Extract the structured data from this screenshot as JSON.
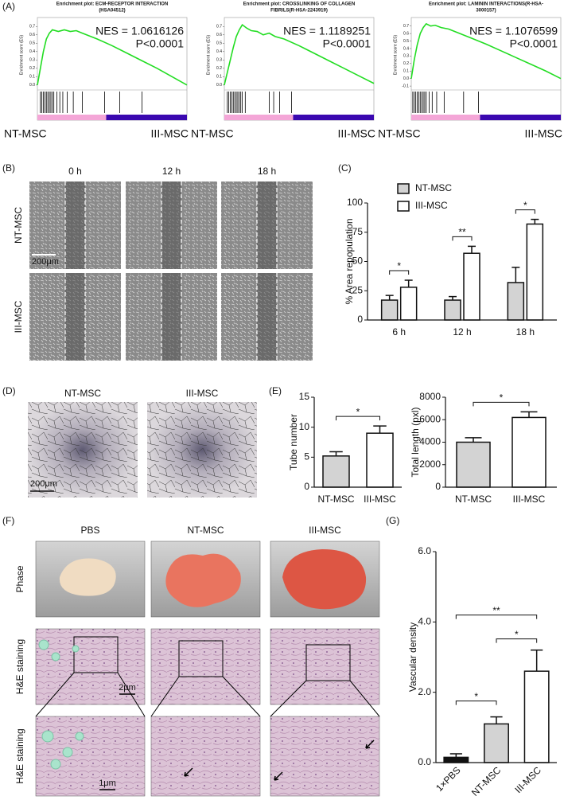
{
  "panel_labels": [
    "(A)",
    "(B)",
    "(C)",
    "(D)",
    "(E)",
    "(F)",
    "(G)"
  ],
  "chart_data": [
    {
      "type": "gsea",
      "title": [
        "Enrichment plot: ECM-RECEPTOR INTERACTION",
        "(HSA04512)"
      ],
      "ylabel": "Enrichment score (ES)",
      "nes": "NES = 1.0616126",
      "pvalue": "P<0.0001",
      "class_names": [
        "NT-MSC",
        "III-MSC"
      ],
      "color": "#22dd22",
      "class_colors": [
        "#f4a6d7",
        "#3a08b0"
      ],
      "x": [
        0,
        2,
        4,
        6,
        8,
        10,
        14,
        18,
        22,
        26,
        30,
        40,
        50,
        60,
        70,
        80,
        90,
        100
      ],
      "values": [
        0,
        0.2,
        0.4,
        0.55,
        0.62,
        0.66,
        0.64,
        0.66,
        0.64,
        0.65,
        0.62,
        0.55,
        0.47,
        0.38,
        0.29,
        0.2,
        0.1,
        0
      ],
      "hits": [
        2,
        3,
        4,
        5,
        6,
        7,
        8,
        9,
        10,
        11,
        13,
        15,
        17,
        20,
        24,
        30,
        45,
        55,
        70
      ],
      "class_split": 46,
      "xlim": [
        0,
        100
      ],
      "ylim": [
        -0.03,
        0.75
      ],
      "yticks": [
        {
          "value": 0,
          "label": "0.0"
        },
        0.1,
        0.2,
        0.3,
        0.4,
        0.5,
        0.6,
        0.7
      ]
    },
    {
      "type": "gsea",
      "title": [
        "Enrichment plot: CROSSLINKING OF COLLAGEN",
        "FIBRILS(R-HSA-2243919)"
      ],
      "ylabel": "Enrichment score (ES)",
      "nes": "NES = 1.1189251",
      "pvalue": "P<0.0001",
      "class_names": [
        "NT-MSC",
        "III-MSC"
      ],
      "color": "#22dd22",
      "class_colors": [
        "#f4a6d7",
        "#3a08b0"
      ],
      "x": [
        0,
        2,
        4,
        6,
        8,
        10,
        12,
        15,
        18,
        22,
        26,
        30,
        34,
        40,
        50,
        60,
        70,
        80,
        90,
        100
      ],
      "values": [
        0,
        0.15,
        0.3,
        0.45,
        0.58,
        0.66,
        0.72,
        0.68,
        0.65,
        0.64,
        0.6,
        0.62,
        0.58,
        0.55,
        0.47,
        0.38,
        0.29,
        0.2,
        0.11,
        0.02
      ],
      "hits": [
        2,
        3,
        4,
        5,
        6,
        7,
        8,
        9,
        10,
        11,
        12,
        14,
        30,
        33,
        37,
        45
      ],
      "class_split": 46,
      "xlim": [
        0,
        100
      ],
      "ylim": [
        -0.03,
        0.75
      ],
      "yticks": [
        {
          "value": 0,
          "label": "0.0"
        },
        0.1,
        0.2,
        0.3,
        0.4,
        0.5,
        0.6,
        0.7
      ]
    },
    {
      "type": "gsea",
      "title": [
        "Enrichment plot: LAMININ INTERACTIONS(R-HSA-",
        "3000157)"
      ],
      "ylabel": "Enrichment score (ES)",
      "nes": "NES = 1.1076599",
      "pvalue": "P<0.0001",
      "class_names": [
        "NT-MSC",
        "III-MSC"
      ],
      "color": "#22dd22",
      "class_colors": [
        "#f4a6d7",
        "#3a08b0"
      ],
      "x": [
        0,
        2,
        4,
        6,
        8,
        10,
        13,
        16,
        20,
        25,
        30,
        40,
        50,
        60,
        70,
        80,
        90,
        100
      ],
      "values": [
        0,
        0.25,
        0.45,
        0.6,
        0.68,
        0.73,
        0.7,
        0.71,
        0.68,
        0.66,
        0.62,
        0.54,
        0.46,
        0.37,
        0.28,
        0.19,
        0.1,
        0
      ],
      "hits": [
        1,
        2,
        3,
        4,
        5,
        6,
        7,
        8,
        9,
        10,
        12,
        14,
        17,
        22,
        35,
        45
      ],
      "class_split": 46,
      "xlim": [
        0,
        100
      ],
      "ylim": [
        -0.12,
        0.75
      ],
      "yticks": [
        -0.1,
        {
          "value": 0,
          "label": "0.0"
        },
        0.1,
        0.2,
        0.3,
        0.4,
        0.5,
        0.6,
        0.7
      ]
    },
    {
      "type": "bar",
      "ylabel": "% Area repopulation",
      "categories": [
        "6 h",
        "12 h",
        "18 h"
      ],
      "series": [
        {
          "name": "NT-MSC",
          "color": "#d3d3d3",
          "values": [
            17,
            17,
            32
          ],
          "errors": [
            4,
            3,
            13
          ]
        },
        {
          "name": "III-MSC",
          "color": "#ffffff",
          "values": [
            28,
            57,
            82
          ],
          "errors": [
            6,
            6,
            4
          ]
        }
      ],
      "significance": [
        "*",
        "**",
        "*"
      ],
      "legend": "top-left",
      "ylim": [
        0,
        100
      ],
      "yticks": [
        0,
        25,
        50,
        75,
        100
      ]
    },
    {
      "type": "bar",
      "ylabel": "Tube number",
      "categories": [
        "NT-MSC",
        "III-MSC"
      ],
      "values": [
        5.2,
        9
      ],
      "errors": [
        0.7,
        1.2
      ],
      "colors": [
        "#d3d3d3",
        "#ffffff"
      ],
      "significance": "*",
      "ylim": [
        0,
        15
      ],
      "yticks": [
        0,
        5,
        10,
        15
      ]
    },
    {
      "type": "bar",
      "ylabel": "Total length (pxl)",
      "categories": [
        "NT-MSC",
        "III-MSC"
      ],
      "values": [
        4000,
        6200
      ],
      "errors": [
        400,
        500
      ],
      "colors": [
        "#d3d3d3",
        "#ffffff"
      ],
      "significance": "*",
      "ylim": [
        0,
        8000
      ],
      "yticks": [
        0,
        2000,
        4000,
        6000,
        8000
      ]
    },
    {
      "type": "bar",
      "ylabel": "Vascular density",
      "categories": [
        "1×PBS",
        "NT-MSC",
        "III-MSC"
      ],
      "values": [
        0.15,
        1.1,
        2.6
      ],
      "errors": [
        0.1,
        0.2,
        0.6
      ],
      "colors": [
        "#111111",
        "#d3d3d3",
        "#ffffff"
      ],
      "significance": [
        "*",
        "*",
        "**"
      ],
      "ylim": [
        0,
        6
      ],
      "yticks": [
        {
          "value": 0,
          "label": "0.0"
        },
        {
          "value": 2,
          "label": "2.0"
        },
        {
          "value": 4,
          "label": "4.0"
        },
        {
          "value": 6,
          "label": "6.0"
        }
      ]
    }
  ],
  "wound_assay": {
    "columns": [
      "0 h",
      "12 h",
      "18 h"
    ],
    "rows": [
      "NT-MSC",
      "III-MSC"
    ],
    "scale_bar": "200μm"
  },
  "tube_images": {
    "columns": [
      "NT-MSC",
      "III-MSC"
    ],
    "scale_bar": "200μm"
  },
  "implants": {
    "columns": [
      "PBS",
      "NT-MSC",
      "III-MSC"
    ],
    "rows": [
      "Phase",
      "H&E staining",
      "H&E staining"
    ],
    "scale_bars": [
      "2μm",
      "1μm"
    ]
  }
}
